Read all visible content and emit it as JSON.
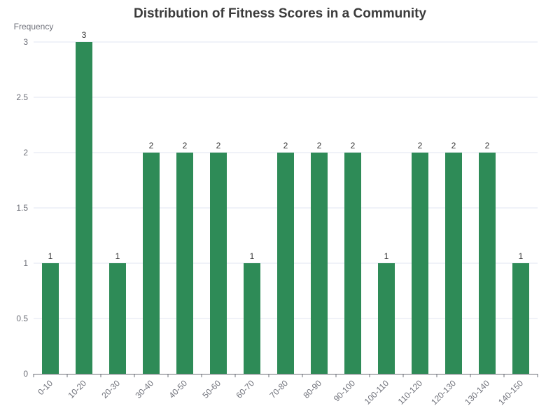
{
  "chart_data": {
    "type": "bar",
    "title": "Distribution of Fitness Scores in a Community",
    "xlabel": "",
    "ylabel": "Frequency",
    "categories": [
      "0-10",
      "10-20",
      "20-30",
      "30-40",
      "40-50",
      "50-60",
      "60-70",
      "70-80",
      "80-90",
      "90-100",
      "100-110",
      "110-120",
      "120-130",
      "130-140",
      "140-150"
    ],
    "values": [
      1,
      3,
      1,
      2,
      2,
      2,
      1,
      2,
      2,
      2,
      1,
      2,
      2,
      2,
      1
    ],
    "ylim": [
      0,
      3
    ],
    "yticks": [
      "0",
      "0.5",
      "1",
      "1.5",
      "2",
      "2.5",
      "3"
    ],
    "grid": true,
    "data_labels": true,
    "bar_color": "#2e8b57",
    "grid_color": "#e0e6f1",
    "axis_color": "#6e7079"
  }
}
